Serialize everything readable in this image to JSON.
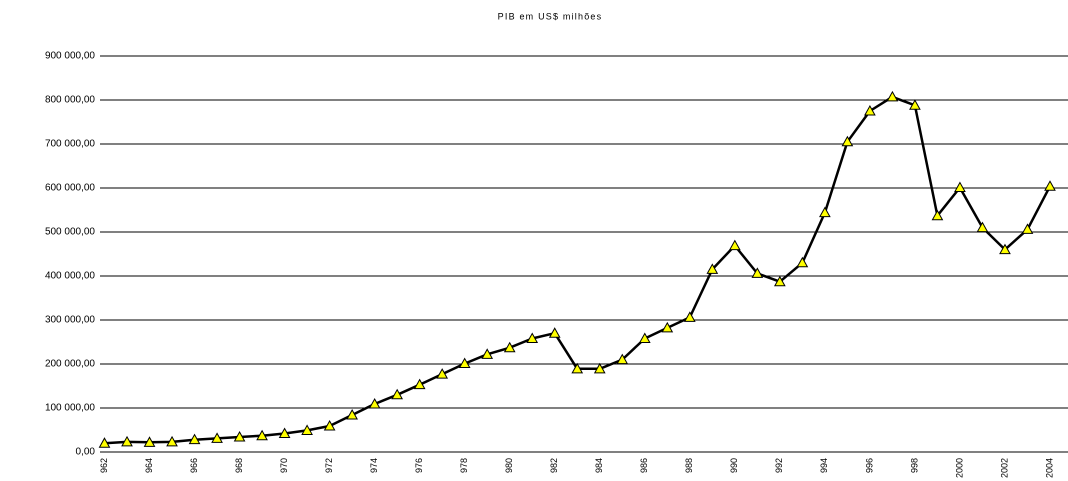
{
  "chart_data": {
    "type": "line",
    "title": "PIB em US$ milhões",
    "categories": [
      "962",
      null,
      "964",
      null,
      "966",
      null,
      "968",
      null,
      "970",
      null,
      "972",
      null,
      "974",
      null,
      "976",
      null,
      "978",
      null,
      "980",
      null,
      "982",
      null,
      "984",
      null,
      "986",
      null,
      "988",
      null,
      "990",
      null,
      "992",
      null,
      "994",
      null,
      "996",
      null,
      "998",
      null,
      "2000",
      null,
      "2002",
      null,
      "2004"
    ],
    "values": [
      20000,
      23000,
      22000,
      23000,
      28000,
      31000,
      34000,
      37000,
      42000,
      49000,
      59000,
      84000,
      109000,
      130000,
      153000,
      177000,
      201000,
      222000,
      237000,
      258000,
      270000,
      189000,
      189000,
      210000,
      258000,
      282000,
      306000,
      415000,
      469000,
      406000,
      387000,
      430000,
      544000,
      705000,
      775000,
      807000,
      788000,
      537000,
      601000,
      510000,
      460000,
      506000,
      604000
    ],
    "color": "#000000",
    "marker_color": "#ffff00",
    "ylim": [
      0,
      900000
    ],
    "yticks": [
      {
        "value": 0,
        "label": "0,00"
      },
      {
        "value": 100000,
        "label": "100 000,00"
      },
      {
        "value": 200000,
        "label": "200 000,00"
      },
      {
        "value": 300000,
        "label": "300 000,00"
      },
      {
        "value": 400000,
        "label": "400 000,00"
      },
      {
        "value": 500000,
        "label": "500 000,00"
      },
      {
        "value": 600000,
        "label": "600 000,00"
      },
      {
        "value": 700000,
        "label": "700 000,00"
      },
      {
        "value": 800000,
        "label": "800 000,00"
      },
      {
        "value": 900000,
        "label": "900 000,00"
      }
    ],
    "grid": true
  }
}
